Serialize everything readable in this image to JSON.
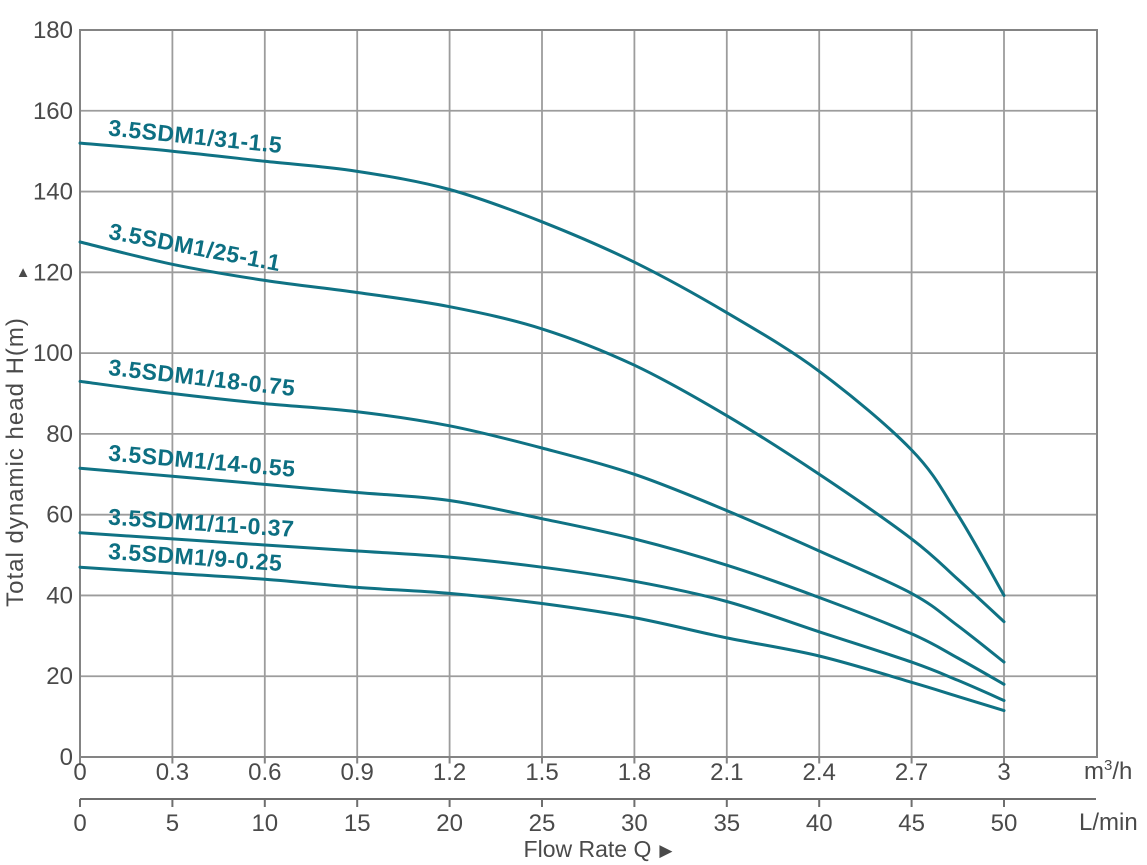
{
  "colors": {
    "curve": "#0F7284",
    "curve_label": "#0D6F82",
    "grid": "#9C9C9C",
    "border": "#848484",
    "secondary_axis": "#6E6E6E",
    "text": "#4A4A4A",
    "background": "#FFFFFF"
  },
  "chart_data": {
    "type": "line",
    "title": "",
    "xlabel": "Flow Rate Q",
    "xlabel_arrow": "▶",
    "ylabel": "Total dynamic head H(m)",
    "ylabel_arrow": "▲",
    "ylim": [
      0,
      180
    ],
    "y_tick_step": 20,
    "y_tick_labels": [
      "0",
      "20",
      "40",
      "60",
      "80",
      "100",
      "120",
      "140",
      "160",
      "180"
    ],
    "x_axis_primary": {
      "max": 3,
      "unit_base": "m",
      "unit_sup": "3",
      "unit_rest": "/h",
      "tick_labels": [
        "0",
        "0.3",
        "0.6",
        "0.9",
        "1.2",
        "1.5",
        "1.8",
        "2.1",
        "2.4",
        "2.7",
        "3"
      ]
    },
    "x_axis_secondary": {
      "max": 50,
      "unit": "L/min",
      "tick_labels": [
        "0",
        "5",
        "10",
        "15",
        "20",
        "25",
        "30",
        "35",
        "40",
        "45",
        "50"
      ]
    },
    "grid": true,
    "legend_position": "labels-on-curves",
    "x": [
      0,
      0.3,
      0.6,
      0.9,
      1.2,
      1.5,
      1.8,
      2.1,
      2.4,
      2.7,
      2.85,
      3.0
    ],
    "series": [
      {
        "name": "3.5SDM1/31-1.5",
        "values": [
          152,
          150,
          147.5,
          145,
          140.5,
          132.5,
          122.5,
          110,
          95.5,
          76,
          60,
          40
        ]
      },
      {
        "name": "3.5SDM1/25-1.1",
        "values": [
          127.5,
          122,
          118,
          115,
          111.5,
          106,
          97,
          84.5,
          70,
          54,
          44,
          33.5
        ]
      },
      {
        "name": "3.5SDM1/18-0.75",
        "values": [
          93,
          90,
          87.5,
          85.5,
          82,
          76.5,
          70,
          61,
          51,
          40.5,
          32.5,
          23.5
        ]
      },
      {
        "name": "3.5SDM1/14-0.55",
        "values": [
          71.5,
          69.5,
          67.5,
          65.5,
          63.5,
          59,
          54,
          47.5,
          39.5,
          30.5,
          24.5,
          18
        ]
      },
      {
        "name": "3.5SDM1/11-0.37",
        "values": [
          55.5,
          54,
          52.5,
          51,
          49.5,
          47,
          43.5,
          38.5,
          31,
          23.5,
          19,
          14
        ]
      },
      {
        "name": "3.5SDM1/9-0.25",
        "values": [
          47,
          45.5,
          44,
          42,
          40.5,
          38,
          34.5,
          29.5,
          25,
          18.5,
          15,
          11.5
        ]
      }
    ]
  }
}
